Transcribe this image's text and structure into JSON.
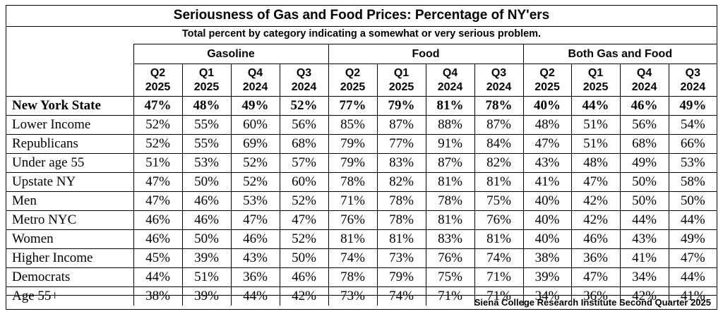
{
  "chart_data": {
    "type": "table",
    "title": "Seriousness of Gas and Food Prices:  Percentage of NY'ers",
    "subtitle": "Total percent by category indicating a somewhat or very serious problem.",
    "source": "Siena College Research Institute Second Quarter 2025",
    "groups": [
      "Gasoline",
      "Food",
      "Both Gas and Food"
    ],
    "quarters": [
      {
        "q": "Q2",
        "y": "2025"
      },
      {
        "q": "Q1",
        "y": "2025"
      },
      {
        "q": "Q4",
        "y": "2024"
      },
      {
        "q": "Q3",
        "y": "2024"
      }
    ],
    "rows": [
      {
        "label": "New York State",
        "values": [
          "47%",
          "48%",
          "49%",
          "52%",
          "77%",
          "79%",
          "81%",
          "78%",
          "40%",
          "44%",
          "46%",
          "49%"
        ]
      },
      {
        "label": "Lower Income",
        "values": [
          "52%",
          "55%",
          "60%",
          "56%",
          "85%",
          "87%",
          "88%",
          "87%",
          "48%",
          "51%",
          "56%",
          "54%"
        ]
      },
      {
        "label": "Republicans",
        "values": [
          "52%",
          "55%",
          "69%",
          "68%",
          "79%",
          "77%",
          "91%",
          "84%",
          "47%",
          "51%",
          "68%",
          "66%"
        ]
      },
      {
        "label": "Under age 55",
        "values": [
          "51%",
          "53%",
          "52%",
          "57%",
          "79%",
          "83%",
          "87%",
          "82%",
          "43%",
          "48%",
          "49%",
          "53%"
        ]
      },
      {
        "label": "Upstate NY",
        "values": [
          "47%",
          "50%",
          "52%",
          "60%",
          "78%",
          "82%",
          "81%",
          "81%",
          "41%",
          "47%",
          "50%",
          "58%"
        ]
      },
      {
        "label": "Men",
        "values": [
          "47%",
          "46%",
          "53%",
          "52%",
          "71%",
          "78%",
          "78%",
          "75%",
          "40%",
          "42%",
          "50%",
          "50%"
        ]
      },
      {
        "label": "Metro NYC",
        "values": [
          "46%",
          "46%",
          "47%",
          "47%",
          "76%",
          "78%",
          "81%",
          "76%",
          "40%",
          "42%",
          "44%",
          "44%"
        ]
      },
      {
        "label": "Women",
        "values": [
          "46%",
          "50%",
          "46%",
          "52%",
          "81%",
          "81%",
          "83%",
          "81%",
          "40%",
          "46%",
          "43%",
          "49%"
        ]
      },
      {
        "label": "Higher Income",
        "values": [
          "45%",
          "39%",
          "43%",
          "50%",
          "74%",
          "73%",
          "76%",
          "74%",
          "38%",
          "36%",
          "41%",
          "47%"
        ]
      },
      {
        "label": "Democrats",
        "values": [
          "44%",
          "51%",
          "36%",
          "46%",
          "78%",
          "79%",
          "75%",
          "71%",
          "39%",
          "47%",
          "34%",
          "44%"
        ]
      },
      {
        "label": "Age 55+",
        "values": [
          "38%",
          "39%",
          "44%",
          "42%",
          "73%",
          "74%",
          "71%",
          "71%",
          "34%",
          "36%",
          "42%",
          "41%"
        ]
      }
    ]
  }
}
